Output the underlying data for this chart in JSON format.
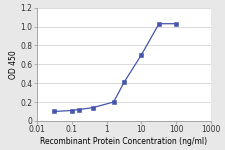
{
  "x": [
    0.032,
    0.1,
    0.16,
    0.4,
    1.6,
    3.2,
    10,
    32,
    100
  ],
  "y": [
    0.1,
    0.11,
    0.12,
    0.14,
    0.2,
    0.41,
    0.7,
    1.03,
    1.03
  ],
  "line_color": "#4455aa",
  "marker_color": "#4455aa",
  "xlabel": "Recombinant Protein Concentration (ng/ml)",
  "ylabel": "OD 450",
  "xlim_log": [
    0.01,
    1000
  ],
  "ylim": [
    0,
    1.2
  ],
  "yticks": [
    0,
    0.2,
    0.4,
    0.6,
    0.8,
    1.0,
    1.2
  ],
  "xtick_labels": [
    "0.01",
    "0.1",
    "1",
    "10",
    "100",
    "1000"
  ],
  "xtick_vals": [
    0.01,
    0.1,
    1,
    10,
    100,
    1000
  ],
  "bg_color": "#e8e8e8",
  "plot_bg": "#ffffff",
  "grid_color": "#cccccc",
  "font_size_label": 5.5,
  "font_size_tick": 5.5,
  "marker_size": 3.0,
  "line_width": 0.9
}
